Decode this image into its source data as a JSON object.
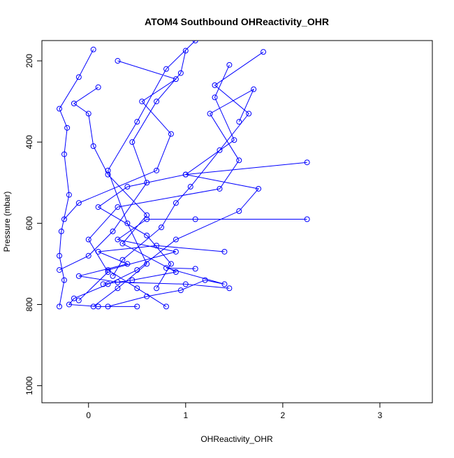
{
  "chart_data": {
    "type": "line",
    "title": "ATOM4 Southbound OHReactivity_OHR",
    "x_label": "OHReactivity_OHR",
    "y_label": "Pressure (mbar)",
    "color": "#0000ff",
    "x": [
      -0.3,
      -0.25,
      -0.3,
      -0.28,
      -0.2,
      -0.25,
      -0.22,
      -0.3,
      -0.1,
      0.05,
      null,
      0.8,
      0.5,
      0.2,
      0.9,
      0.3,
      0.6,
      1.1,
      2.25,
      null,
      1.45,
      1.0,
      0.3,
      -0.1,
      0.4,
      0.1,
      0.7,
      1.4,
      null,
      0.5,
      0.1,
      -0.2,
      -0.15,
      0.2,
      0.5,
      0.9,
      1.55,
      1.75,
      1.0,
      2.25,
      null,
      0.05,
      0.3,
      0.6,
      0.4,
      0.2,
      0.5,
      0.8,
      1.1,
      null,
      -0.1,
      0.2,
      0.0,
      0.3,
      1.35,
      1.55,
      1.25,
      1.7,
      1.55,
      null,
      0.7,
      0.85,
      0.6,
      0.1,
      0.4,
      1.0,
      1.5,
      1.3,
      1.45,
      null,
      -0.3,
      0.0,
      0.25,
      0.6,
      0.45,
      0.7,
      0.95,
      1.0,
      null,
      0.15,
      0.45,
      0.9,
      0.35,
      0.6,
      0.2,
      0.05,
      0.0,
      -0.15,
      0.1,
      null,
      -0.25,
      -0.1,
      0.7,
      0.85,
      0.55,
      0.9,
      0.3,
      null,
      0.2,
      0.6,
      0.95,
      1.2,
      1.4,
      0.8,
      1.1,
      null,
      0.25,
      0.35,
      0.75,
      0.9,
      1.05,
      1.35,
      1.65,
      1.3,
      1.8
    ],
    "values": [
      805,
      740,
      680,
      620,
      530,
      430,
      365,
      318,
      240,
      172,
      null,
      805,
      760,
      715,
      670,
      640,
      590,
      590,
      590,
      null,
      760,
      750,
      745,
      730,
      700,
      670,
      655,
      670,
      null,
      805,
      805,
      800,
      785,
      750,
      715,
      640,
      570,
      515,
      480,
      450,
      null,
      805,
      760,
      700,
      600,
      470,
      350,
      220,
      150,
      null,
      790,
      720,
      640,
      560,
      515,
      445,
      330,
      270,
      350,
      null,
      760,
      700,
      630,
      560,
      510,
      480,
      395,
      290,
      210,
      null,
      715,
      680,
      620,
      500,
      400,
      300,
      230,
      175,
      null,
      750,
      740,
      720,
      650,
      580,
      480,
      410,
      330,
      305,
      265,
      null,
      590,
      550,
      470,
      380,
      300,
      245,
      200,
      null,
      805,
      780,
      765,
      740,
      750,
      710,
      712,
      null,
      730,
      690,
      610,
      550,
      510,
      420,
      330,
      260,
      178
    ],
    "xlim": [
      -0.48,
      3.54
    ],
    "ylim": [
      1042,
      150
    ],
    "xticks": [
      0,
      1,
      2,
      3
    ],
    "yticks": [
      200,
      400,
      600,
      800,
      1000
    ]
  }
}
